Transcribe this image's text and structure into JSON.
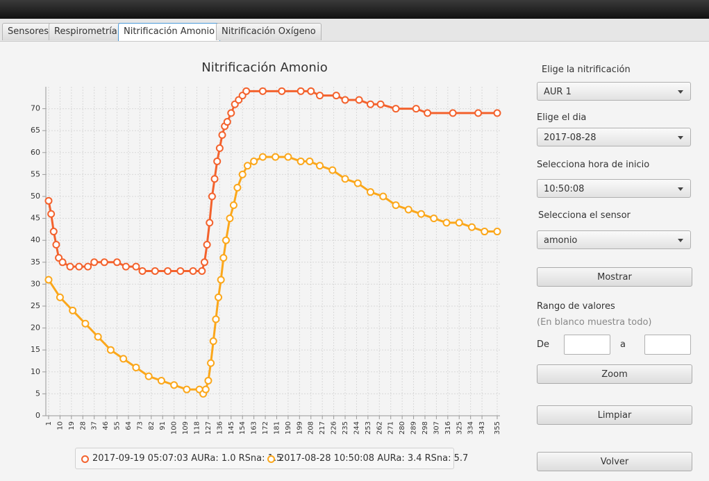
{
  "tabs": [
    "Sensores",
    "Respirometría",
    "Nitrificación Amonio",
    "Nitrificación Oxígeno"
  ],
  "form": {
    "nitrificacion_label": "Elige la nitrificación",
    "nitrificacion_value": "AUR 1",
    "dia_label": "Elige el dia",
    "dia_value": "2017-08-28",
    "hora_label": "Selecciona hora de inicio",
    "hora_value": "10:50:08",
    "sensor_label": "Selecciona el sensor",
    "sensor_value": "amonio",
    "mostrar": "Mostrar",
    "rango_label": "Rango de valores",
    "rango_hint": "(En blanco muestra todo)",
    "de_label": "De",
    "a_label": "a",
    "zoom": "Zoom",
    "limpiar": "Limpiar",
    "volver": "Volver"
  },
  "chart_data": {
    "type": "line",
    "title": "Nitrificación Amonio",
    "xlim": [
      1,
      355
    ],
    "xticks": [
      1,
      10,
      19,
      28,
      37,
      46,
      55,
      64,
      73,
      82,
      91,
      100,
      109,
      118,
      127,
      136,
      145,
      154,
      163,
      172,
      181,
      190,
      199,
      208,
      217,
      226,
      235,
      244,
      253,
      262,
      271,
      280,
      289,
      298,
      307,
      316,
      325,
      334,
      343,
      355
    ],
    "ylim": [
      0,
      75
    ],
    "yticks": [
      0,
      5,
      10,
      15,
      20,
      25,
      30,
      35,
      40,
      45,
      50,
      55,
      60,
      65,
      70
    ],
    "grid": true,
    "series": [
      {
        "name": "2017-09-19 05:07:03 AURa: 1.0 RSna: 1.5",
        "color": "#f3622d",
        "x": [
          1,
          3,
          5,
          7,
          9,
          12,
          18,
          25,
          32,
          37,
          45,
          55,
          62,
          70,
          75,
          85,
          95,
          105,
          115,
          122,
          124,
          126,
          128,
          130,
          132,
          134,
          136,
          138,
          140,
          142,
          145,
          148,
          151,
          154,
          157,
          170,
          185,
          200,
          208,
          215,
          228,
          235,
          246,
          255,
          263,
          275,
          291,
          300,
          320,
          340,
          355
        ],
        "values": [
          49,
          46,
          42,
          39,
          36,
          35,
          34,
          34,
          34,
          35,
          35,
          35,
          34,
          34,
          33,
          33,
          33,
          33,
          33,
          33,
          35,
          39,
          44,
          50,
          54,
          58,
          61,
          64,
          66,
          67,
          69,
          71,
          72,
          73,
          74,
          74,
          74,
          74,
          74,
          73,
          73,
          72,
          72,
          71,
          71,
          70,
          70,
          69,
          69,
          69,
          69
        ]
      },
      {
        "name": "2017-08-28 10:50:08 AURa: 3.4 RSna: 5.7",
        "color": "#fba71b",
        "x": [
          1,
          10,
          20,
          30,
          40,
          50,
          60,
          70,
          80,
          90,
          100,
          110,
          120,
          123,
          125,
          127,
          129,
          131,
          133,
          135,
          137,
          139,
          141,
          144,
          147,
          150,
          154,
          158,
          163,
          170,
          180,
          190,
          200,
          207,
          215,
          225,
          235,
          245,
          255,
          265,
          275,
          285,
          295,
          305,
          315,
          325,
          335,
          345,
          355
        ],
        "values": [
          31,
          27,
          24,
          21,
          18,
          15,
          13,
          11,
          9,
          8,
          7,
          6,
          6,
          5,
          6,
          8,
          12,
          17,
          22,
          27,
          31,
          36,
          40,
          45,
          48,
          52,
          55,
          57,
          58,
          59,
          59,
          59,
          58,
          58,
          57,
          56,
          54,
          53,
          51,
          50,
          48,
          47,
          46,
          45,
          44,
          44,
          43,
          42,
          42
        ]
      }
    ]
  }
}
